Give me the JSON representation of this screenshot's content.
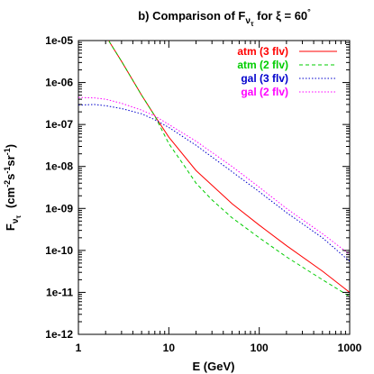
{
  "chart_data": {
    "type": "line",
    "title": "b) Comparison of F",
    "title_sub": "ν",
    "title_subsub": "τ",
    "title_rest": " for ξ = 60",
    "title_degree": "°",
    "xlabel": "E (GeV)",
    "ylabel": {
      "f": "F",
      "sub1": "ν",
      "sub2": "τ",
      "units_open": "(cm",
      "exp1": "-2",
      "s": "s",
      "exp2": "-1",
      "sr": "sr",
      "exp3": "-1",
      "units_close": ")"
    },
    "xscale": "log",
    "yscale": "log",
    "xlim": [
      1,
      1000
    ],
    "ylim": [
      1e-12,
      1e-05
    ],
    "xticks": [
      {
        "value": 1,
        "label": "1"
      },
      {
        "value": 10,
        "label": "10"
      },
      {
        "value": 100,
        "label": "100"
      },
      {
        "value": 1000,
        "label": "1000"
      }
    ],
    "yticks": [
      {
        "value": 1e-12,
        "label": "1e-12"
      },
      {
        "value": 1e-11,
        "label": "1e-11"
      },
      {
        "value": 1e-10,
        "label": "1e-10"
      },
      {
        "value": 1e-09,
        "label": "1e-09"
      },
      {
        "value": 1e-08,
        "label": "1e-08"
      },
      {
        "value": 1e-07,
        "label": "1e-07"
      },
      {
        "value": 1e-06,
        "label": "1e-06"
      },
      {
        "value": 1e-05,
        "label": "1e-05"
      }
    ],
    "grid": false,
    "legend_position": "top-right",
    "series": [
      {
        "name": "atm (3 flv)",
        "color": "#ff0000",
        "dash": "solid",
        "x": [
          2.0,
          3.0,
          5.0,
          7.0,
          10.0,
          20.0,
          50.0,
          100.0,
          200.0,
          500.0,
          1000.0
        ],
        "y": [
          1.3e-05,
          3.2e-06,
          5e-07,
          1.6e-07,
          5e-08,
          8e-09,
          1.3e-09,
          4e-10,
          1.3e-10,
          3.2e-11,
          1e-11
        ]
      },
      {
        "name": "atm (2 flv)",
        "color": "#00cc00",
        "dash": "dashed",
        "x": [
          2.0,
          3.0,
          5.0,
          7.0,
          10.0,
          15.0,
          20.0,
          30.0,
          50.0,
          100.0,
          200.0,
          500.0,
          1000.0
        ],
        "y": [
          1.3e-05,
          3.2e-06,
          5e-07,
          1.6e-07,
          3.5e-08,
          1e-08,
          4e-09,
          1.6e-09,
          6e-10,
          2e-10,
          7e-11,
          2e-11,
          8e-12
        ]
      },
      {
        "name": "gal (3 flv)",
        "color": "#0000cc",
        "dash": "dotted",
        "x": [
          1.0,
          1.5,
          2.0,
          3.0,
          5.0,
          7.0,
          10.0,
          20.0,
          50.0,
          100.0,
          200.0,
          500.0,
          1000.0
        ],
        "y": [
          2.9e-07,
          3e-07,
          2.8e-07,
          2.4e-07,
          1.8e-07,
          1.3e-07,
          8.5e-08,
          3.2e-08,
          7.5e-09,
          2.5e-09,
          8e-10,
          2e-10,
          5.5e-11
        ]
      },
      {
        "name": "gal (2 flv)",
        "color": "#ff00ff",
        "dash": "dotted",
        "x": [
          1.0,
          1.5,
          2.0,
          3.0,
          5.0,
          7.0,
          10.0,
          20.0,
          50.0,
          100.0,
          200.0,
          500.0,
          1000.0
        ],
        "y": [
          4.4e-07,
          4.3e-07,
          4e-07,
          3.2e-07,
          2.2e-07,
          1.6e-07,
          1e-07,
          4e-08,
          1e-08,
          3.2e-09,
          1e-09,
          2.5e-10,
          8e-11
        ]
      }
    ]
  }
}
